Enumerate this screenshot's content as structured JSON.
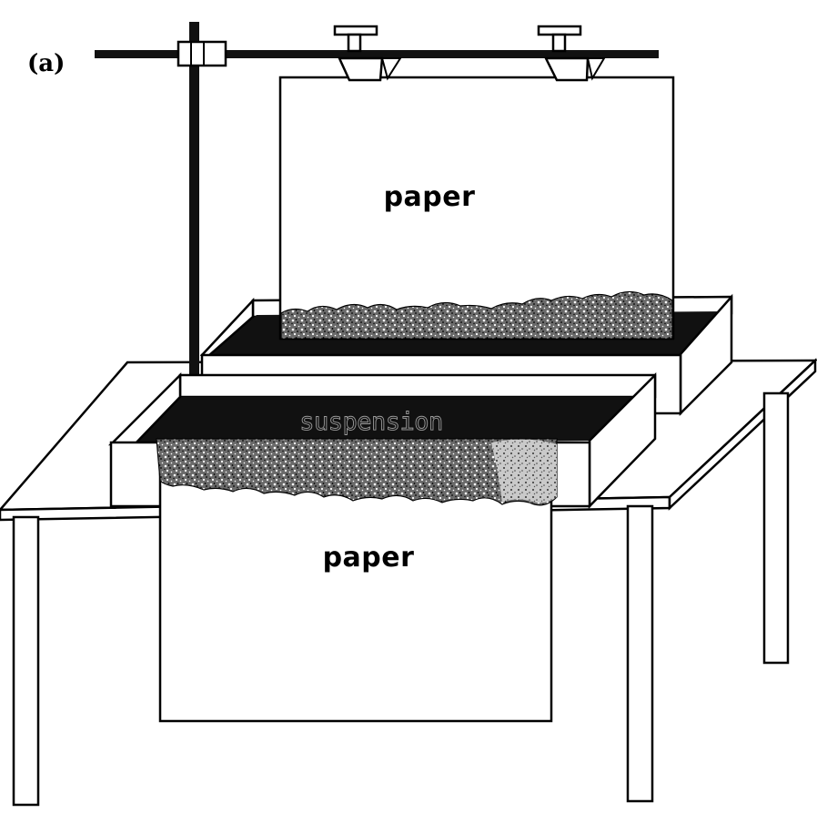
{
  "figure": {
    "panel_label": "(a)",
    "upper_sheet_label": "paper",
    "lower_sheet_label": "paper",
    "bath_label": "suspension"
  },
  "colors": {
    "line": "#000000",
    "fill": "#ffffff",
    "suspension": "#111111"
  }
}
